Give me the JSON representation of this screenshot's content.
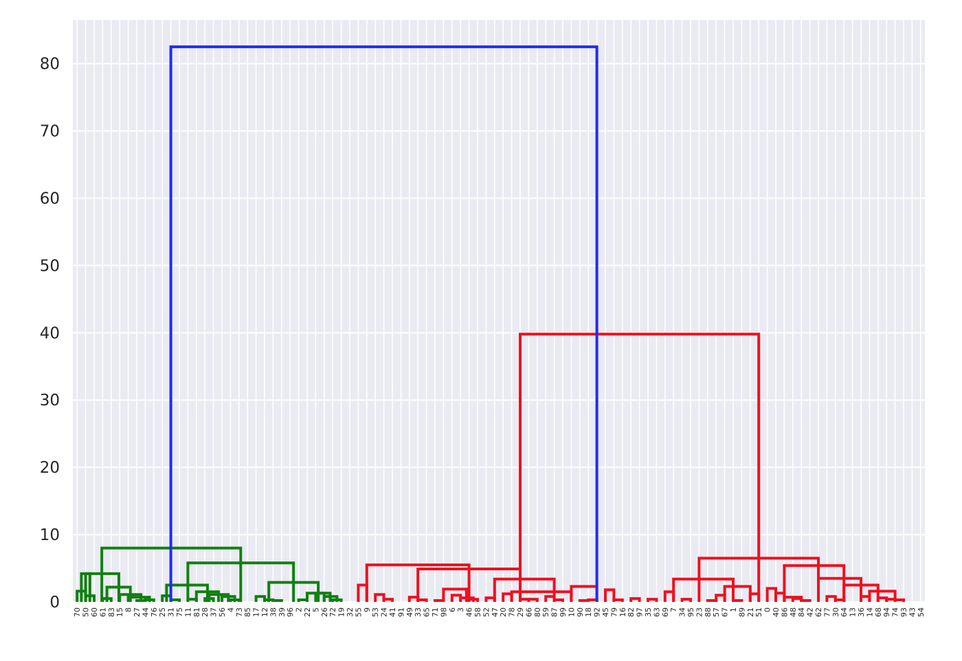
{
  "chart_data": {
    "type": "dendrogram",
    "title": "",
    "xlabel": "",
    "ylabel": "",
    "ylim": [
      0,
      86.5
    ],
    "yticks": [
      0,
      10,
      20,
      30,
      40,
      50,
      60,
      70,
      80
    ],
    "grid": true,
    "leaf_order": [
      70,
      50,
      60,
      61,
      83,
      15,
      8,
      27,
      44,
      76,
      25,
      31,
      75,
      11,
      81,
      28,
      37,
      56,
      4,
      73,
      85,
      17,
      12,
      38,
      39,
      96,
      2,
      22,
      5,
      26,
      72,
      19,
      32,
      55,
      9,
      53,
      24,
      41,
      91,
      49,
      33,
      65,
      71,
      98,
      6,
      3,
      46,
      58,
      52,
      47,
      20,
      78,
      29,
      66,
      80,
      59,
      87,
      99,
      10,
      90,
      18,
      92,
      45,
      79,
      16,
      82,
      97,
      35,
      63,
      69,
      7,
      34,
      95,
      23,
      88,
      57,
      67,
      1,
      89,
      21,
      51,
      0,
      40,
      86,
      48,
      84,
      42,
      62,
      77,
      30,
      64,
      13,
      36,
      14,
      68,
      94,
      74,
      93,
      43,
      54
    ],
    "merge_heights": {
      "root": 82.5,
      "green_cluster": 8.0,
      "red_cluster": 39.8,
      "red_left": 5.5,
      "red_right": 6.5
    },
    "links": [
      {
        "x": [
          0,
          1
        ],
        "h": 1.6,
        "c": "green"
      },
      {
        "x": [
          1,
          2
        ],
        "h": 0.9,
        "c": "green"
      },
      {
        "x": [
          3,
          4
        ],
        "h": 0.5,
        "c": "green"
      },
      {
        "x": [
          0.5,
          1.5
        ],
        "h": 4.2,
        "c": "green"
      },
      {
        "x": [
          7,
          8
        ],
        "h": 0.2,
        "c": "green"
      },
      {
        "x": [
          8,
          9
        ],
        "h": 0.3,
        "c": "green"
      },
      {
        "x": [
          6,
          8.5
        ],
        "h": 0.7,
        "c": "green"
      },
      {
        "x": [
          5,
          7.5
        ],
        "h": 1.1,
        "c": "green"
      },
      {
        "x": [
          3.5,
          6.25
        ],
        "h": 2.2,
        "c": "green"
      },
      {
        "x": [
          1,
          4.9
        ],
        "h": 4.2,
        "c": "green"
      },
      {
        "x": [
          10,
          11
        ],
        "h": 0.9,
        "c": "green"
      },
      {
        "x": [
          11,
          12
        ],
        "h": 0.3,
        "c": "green"
      },
      {
        "x": [
          13,
          14
        ],
        "h": 0.4,
        "c": "green"
      },
      {
        "x": [
          15,
          16
        ],
        "h": 0.5,
        "c": "green"
      },
      {
        "x": [
          18,
          19
        ],
        "h": 0.3,
        "c": "green"
      },
      {
        "x": [
          17,
          18.5
        ],
        "h": 0.8,
        "c": "green"
      },
      {
        "x": [
          15.5,
          17.75
        ],
        "h": 1.1,
        "c": "green"
      },
      {
        "x": [
          14,
          16.6
        ],
        "h": 1.5,
        "c": "green"
      },
      {
        "x": [
          10.5,
          15.3
        ],
        "h": 2.5,
        "c": "green"
      },
      {
        "x": [
          21,
          22
        ],
        "h": 0.8,
        "c": "green"
      },
      {
        "x": [
          22,
          23
        ],
        "h": 0.3,
        "c": "green"
      },
      {
        "x": [
          23,
          24
        ],
        "h": 0.2,
        "c": "green"
      },
      {
        "x": [
          26,
          27
        ],
        "h": 0.3,
        "c": "green"
      },
      {
        "x": [
          28,
          29
        ],
        "h": 1.3,
        "c": "green"
      },
      {
        "x": [
          30,
          31
        ],
        "h": 0.3,
        "c": "green"
      },
      {
        "x": [
          29,
          30.5
        ],
        "h": 0.8,
        "c": "green"
      },
      {
        "x": [
          27,
          29.7
        ],
        "h": 1.3,
        "c": "green"
      },
      {
        "x": [
          22.5,
          28.3
        ],
        "h": 2.9,
        "c": "green"
      },
      {
        "x": [
          13,
          25.4
        ],
        "h": 5.8,
        "c": "green"
      },
      {
        "x": [
          2.9,
          19.2
        ],
        "h": 8.0,
        "c": "green"
      },
      {
        "x": [
          33,
          34
        ],
        "h": 2.5,
        "c": "red"
      },
      {
        "x": [
          35,
          36
        ],
        "h": 1.1,
        "c": "red"
      },
      {
        "x": [
          36,
          37
        ],
        "h": 0.4,
        "c": "red"
      },
      {
        "x": [
          39,
          40
        ],
        "h": 0.7,
        "c": "red"
      },
      {
        "x": [
          40,
          41
        ],
        "h": 0.3,
        "c": "red"
      },
      {
        "x": [
          42,
          43
        ],
        "h": 0.2,
        "c": "red"
      },
      {
        "x": [
          44,
          45
        ],
        "h": 1.0,
        "c": "red"
      },
      {
        "x": [
          46,
          47
        ],
        "h": 0.4,
        "c": "red"
      },
      {
        "x": [
          45,
          46.5
        ],
        "h": 0.6,
        "c": "red"
      },
      {
        "x": [
          43,
          45.7
        ],
        "h": 1.9,
        "c": "red"
      },
      {
        "x": [
          48,
          49
        ],
        "h": 0.6,
        "c": "red"
      },
      {
        "x": [
          50,
          51
        ],
        "h": 1.2,
        "c": "red"
      },
      {
        "x": [
          52,
          53
        ],
        "h": 0.4,
        "c": "red"
      },
      {
        "x": [
          53,
          54
        ],
        "h": 0.4,
        "c": "red"
      },
      {
        "x": [
          55,
          56
        ],
        "h": 0.8,
        "c": "red"
      },
      {
        "x": [
          56,
          57
        ],
        "h": 0.3,
        "c": "red"
      },
      {
        "x": [
          59,
          60
        ],
        "h": 0.2,
        "c": "red"
      },
      {
        "x": [
          60,
          61
        ],
        "h": 0.3,
        "c": "red"
      },
      {
        "x": [
          62,
          63
        ],
        "h": 1.8,
        "c": "red"
      },
      {
        "x": [
          63,
          64
        ],
        "h": 0.3,
        "c": "red"
      },
      {
        "x": [
          65,
          66
        ],
        "h": 0.5,
        "c": "red"
      },
      {
        "x": [
          51,
          58
        ],
        "h": 1.5,
        "c": "red"
      },
      {
        "x": [
          58,
          61
        ],
        "h": 2.3,
        "c": "red"
      },
      {
        "x": [
          49,
          56
        ],
        "h": 3.4,
        "c": "red"
      },
      {
        "x": [
          40,
          52
        ],
        "h": 4.9,
        "c": "red"
      },
      {
        "x": [
          34,
          46
        ],
        "h": 5.5,
        "c": "red"
      },
      {
        "x": [
          67,
          68
        ],
        "h": 0.4,
        "c": "red"
      },
      {
        "x": [
          69,
          70
        ],
        "h": 1.5,
        "c": "red"
      },
      {
        "x": [
          71,
          72
        ],
        "h": 0.4,
        "c": "red"
      },
      {
        "x": [
          74,
          75
        ],
        "h": 0.2,
        "c": "red"
      },
      {
        "x": [
          75,
          76
        ],
        "h": 1.0,
        "c": "red"
      },
      {
        "x": [
          77,
          78
        ],
        "h": 0.2,
        "c": "red"
      },
      {
        "x": [
          79,
          80
        ],
        "h": 1.2,
        "c": "red"
      },
      {
        "x": [
          76,
          79
        ],
        "h": 2.3,
        "c": "red"
      },
      {
        "x": [
          70,
          77
        ],
        "h": 3.4,
        "c": "red"
      },
      {
        "x": [
          81,
          82
        ],
        "h": 2.0,
        "c": "red"
      },
      {
        "x": [
          82,
          83
        ],
        "h": 1.3,
        "c": "red"
      },
      {
        "x": [
          84,
          85
        ],
        "h": 0.5,
        "c": "red"
      },
      {
        "x": [
          85,
          86
        ],
        "h": 0.2,
        "c": "red"
      },
      {
        "x": [
          83,
          85
        ],
        "h": 0.7,
        "c": "red"
      },
      {
        "x": [
          88,
          89
        ],
        "h": 0.8,
        "c": "red"
      },
      {
        "x": [
          89,
          90
        ],
        "h": 0.3,
        "c": "red"
      },
      {
        "x": [
          92,
          93
        ],
        "h": 0.8,
        "c": "red"
      },
      {
        "x": [
          94,
          95
        ],
        "h": 0.6,
        "c": "red"
      },
      {
        "x": [
          95,
          96
        ],
        "h": 0.4,
        "c": "red"
      },
      {
        "x": [
          96,
          97
        ],
        "h": 0.3,
        "c": "red"
      },
      {
        "x": [
          93,
          96
        ],
        "h": 1.6,
        "c": "red"
      },
      {
        "x": [
          90,
          94
        ],
        "h": 2.5,
        "c": "red"
      },
      {
        "x": [
          87,
          92
        ],
        "h": 3.5,
        "c": "red"
      },
      {
        "x": [
          83,
          90
        ],
        "h": 5.4,
        "c": "red"
      },
      {
        "x": [
          73,
          87
        ],
        "h": 6.5,
        "c": "red"
      },
      {
        "x": [
          52,
          80
        ],
        "h": 39.8,
        "c": "red"
      },
      {
        "x": [
          11,
          61
        ],
        "h": 82.5,
        "c": "blue"
      }
    ],
    "colors": {
      "green": "#108010",
      "red": "#f0101e",
      "blue": "#1f2bfa",
      "background": "#eaeaf2",
      "grid": "#ffffff"
    }
  }
}
